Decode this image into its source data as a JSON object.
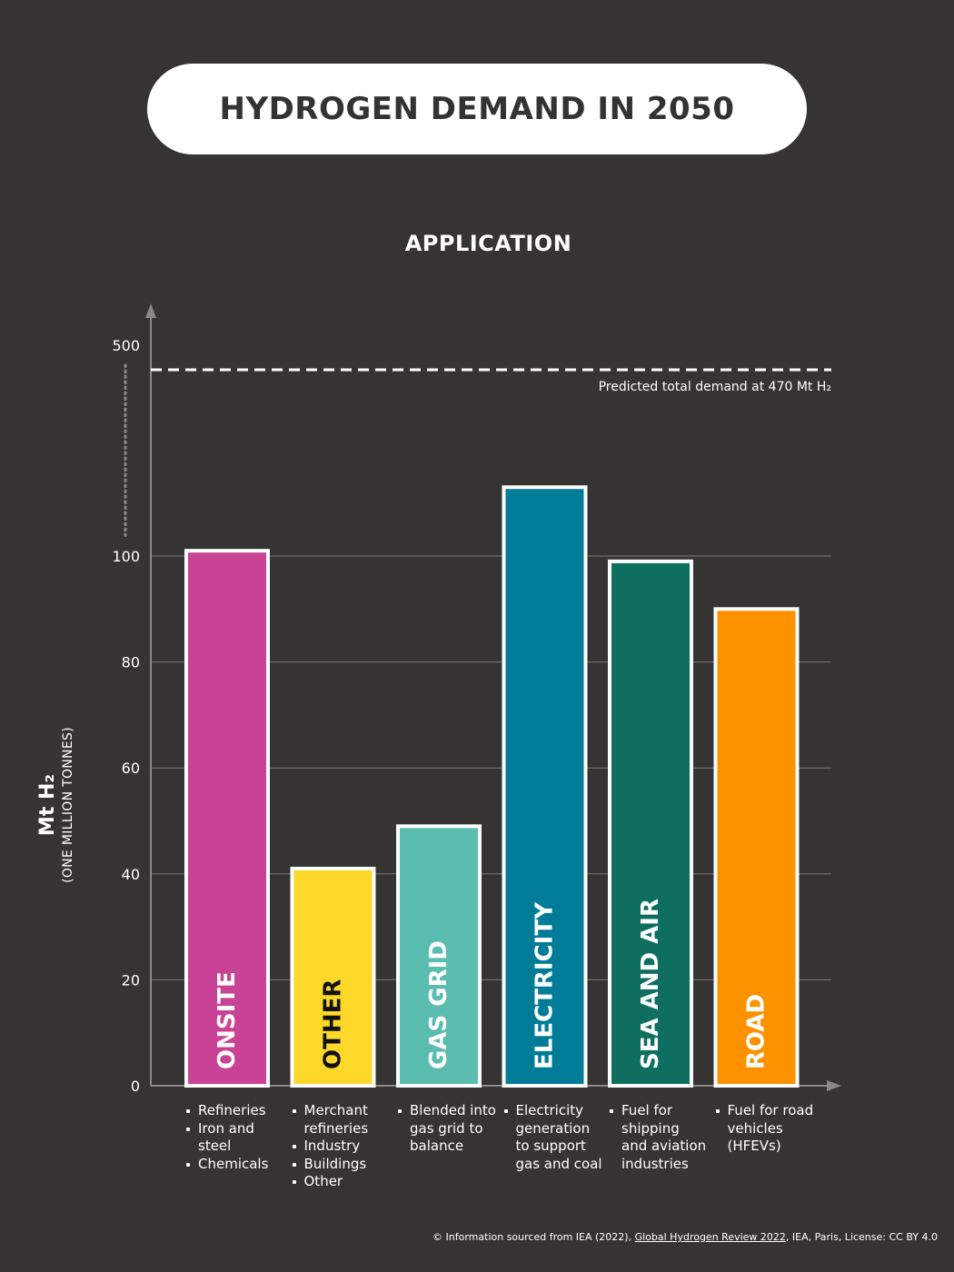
{
  "title": "HYDROGEN DEMAND IN 2050",
  "chart_data": {
    "type": "bar",
    "title": "HYDROGEN DEMAND IN 2050",
    "subtitle": "APPLICATION",
    "ylabel": "Mt H₂",
    "ylabel_sub": "(ONE MILLION TONNES)",
    "yticks": [
      0,
      20,
      40,
      60,
      80,
      100,
      500
    ],
    "ylim": [
      0,
      100
    ],
    "axis_break": "100 to 500 (dotted)",
    "grid": true,
    "categories": [
      "ONSITE",
      "OTHER",
      "GAS GRID",
      "ELECTRICITY",
      "SEA AND AIR",
      "ROAD"
    ],
    "values": [
      101,
      41,
      49,
      113,
      99,
      90
    ],
    "colors": [
      "#c84396",
      "#fdd829",
      "#5bbcb0",
      "#007c99",
      "#0e6f60",
      "#fd9200"
    ],
    "label_colors": [
      "#ffffff",
      "#111111",
      "#ffffff",
      "#ffffff",
      "#ffffff",
      "#ffffff"
    ],
    "reference_line": {
      "value": 470,
      "label": "Predicted total demand at 470 Mt H₂"
    },
    "descriptions": [
      [
        "Refineries",
        "Iron and steel",
        "Chemicals"
      ],
      [
        "Merchant refineries",
        "Industry",
        "Buildings",
        "Other"
      ],
      [
        "Blended into gas grid to balance"
      ],
      [
        "Electricity generation to support gas and coal"
      ],
      [
        "Fuel for shipping and aviation industries"
      ],
      [
        "Fuel for road vehicles (HFEVs)"
      ]
    ]
  },
  "footer": {
    "prefix": "© Information sourced from IEA (2022), ",
    "link": "Global Hydrogen Review 2022",
    "suffix": ", IEA, Paris, License: CC BY 4.0"
  }
}
